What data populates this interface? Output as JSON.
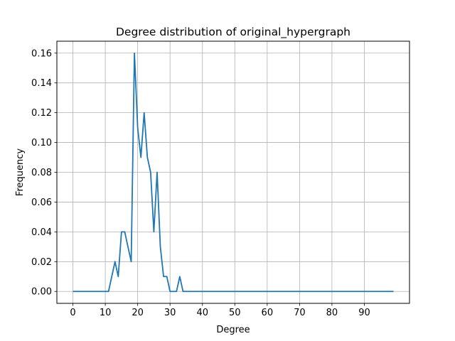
{
  "chart_data": {
    "type": "line",
    "title": "Degree distribution of original_hypergraph",
    "xlabel": "Degree",
    "ylabel": "Frequency",
    "xlim": [
      -4.95,
      103.95
    ],
    "ylim": [
      -0.008,
      0.168
    ],
    "xticks": [
      0,
      10,
      20,
      30,
      40,
      50,
      60,
      70,
      80,
      90
    ],
    "yticks": [
      0.0,
      0.02,
      0.04,
      0.06,
      0.08,
      0.1,
      0.12,
      0.14,
      0.16
    ],
    "ytick_labels": [
      "0.00",
      "0.02",
      "0.04",
      "0.06",
      "0.08",
      "0.10",
      "0.12",
      "0.14",
      "0.16"
    ],
    "grid": true,
    "line_color": "#1f77b4",
    "series": [
      {
        "x": [
          0,
          1,
          2,
          3,
          4,
          5,
          6,
          7,
          8,
          9,
          10,
          11,
          12,
          13,
          14,
          15,
          16,
          17,
          18,
          19,
          20,
          21,
          22,
          23,
          24,
          25,
          26,
          27,
          28,
          29,
          30,
          31,
          32,
          33,
          34,
          35,
          36,
          37,
          38,
          39,
          40,
          41,
          42,
          43,
          44,
          45,
          46,
          47,
          48,
          49,
          50,
          51,
          52,
          53,
          54,
          55,
          56,
          57,
          58,
          59,
          60,
          61,
          62,
          63,
          64,
          65,
          66,
          67,
          68,
          69,
          70,
          71,
          72,
          73,
          74,
          75,
          76,
          77,
          78,
          79,
          80,
          81,
          82,
          83,
          84,
          85,
          86,
          87,
          88,
          89,
          90,
          91,
          92,
          93,
          94,
          95,
          96,
          97,
          98,
          99
        ],
        "values": [
          0,
          0,
          0,
          0,
          0,
          0,
          0,
          0,
          0,
          0,
          0,
          0,
          0.01,
          0.02,
          0.01,
          0.04,
          0.04,
          0.03,
          0.02,
          0.16,
          0.11,
          0.09,
          0.12,
          0.09,
          0.08,
          0.04,
          0.08,
          0.03,
          0.01,
          0.01,
          0,
          0,
          0,
          0.01,
          0,
          0,
          0,
          0,
          0,
          0,
          0,
          0,
          0,
          0,
          0,
          0,
          0,
          0,
          0,
          0,
          0,
          0,
          0,
          0,
          0,
          0,
          0,
          0,
          0,
          0,
          0,
          0,
          0,
          0,
          0,
          0,
          0,
          0,
          0,
          0,
          0,
          0,
          0,
          0,
          0,
          0,
          0,
          0,
          0,
          0,
          0,
          0,
          0,
          0,
          0,
          0,
          0,
          0,
          0,
          0,
          0,
          0,
          0,
          0,
          0,
          0,
          0,
          0,
          0,
          0
        ]
      }
    ]
  }
}
